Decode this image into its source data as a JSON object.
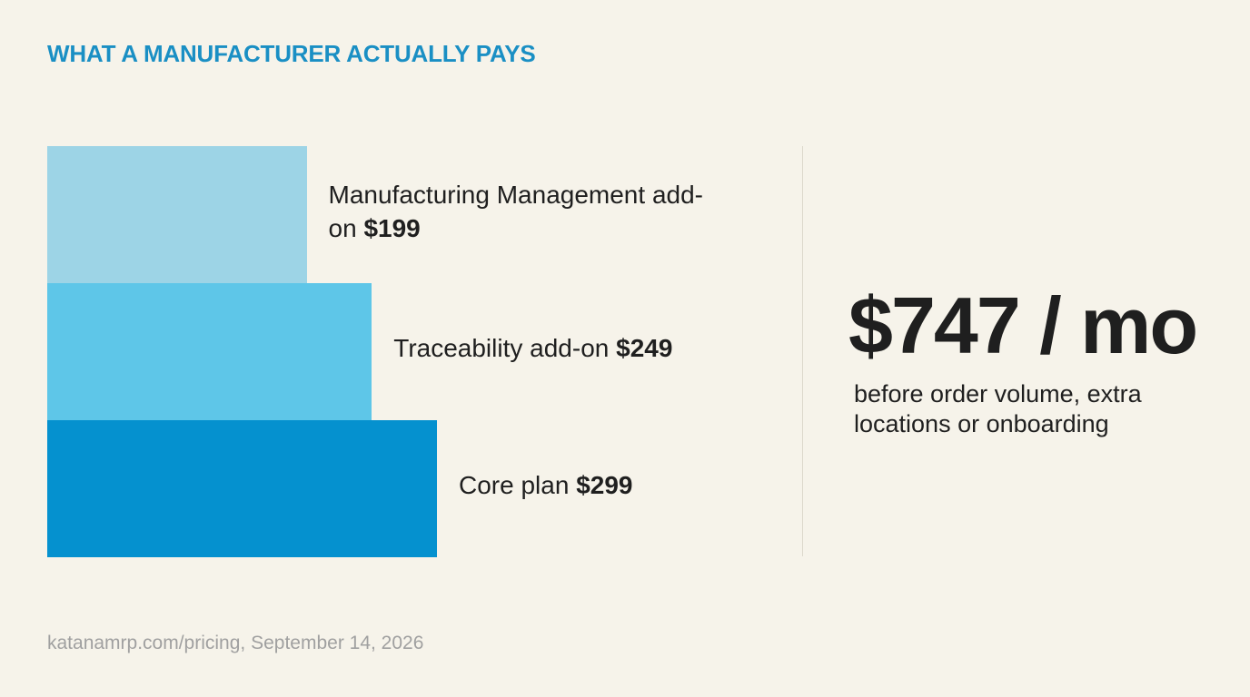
{
  "chart_data": {
    "type": "bar",
    "title": "WHAT A MANUFACTURER ACTUALLY PAYS",
    "categories": [
      "Manufacturing Management add-on",
      "Traceability add-on",
      "Core plan"
    ],
    "values": [
      199,
      249,
      299
    ],
    "value_labels": [
      "$199",
      "$249",
      "$299"
    ],
    "colors": [
      "#9dd4e6",
      "#5ec6e8",
      "#0591cf"
    ],
    "total": "$747 / mo",
    "note": "before order volume, extra locations or onboarding",
    "source": "katanamrp.com/pricing, September 14, 2026"
  }
}
